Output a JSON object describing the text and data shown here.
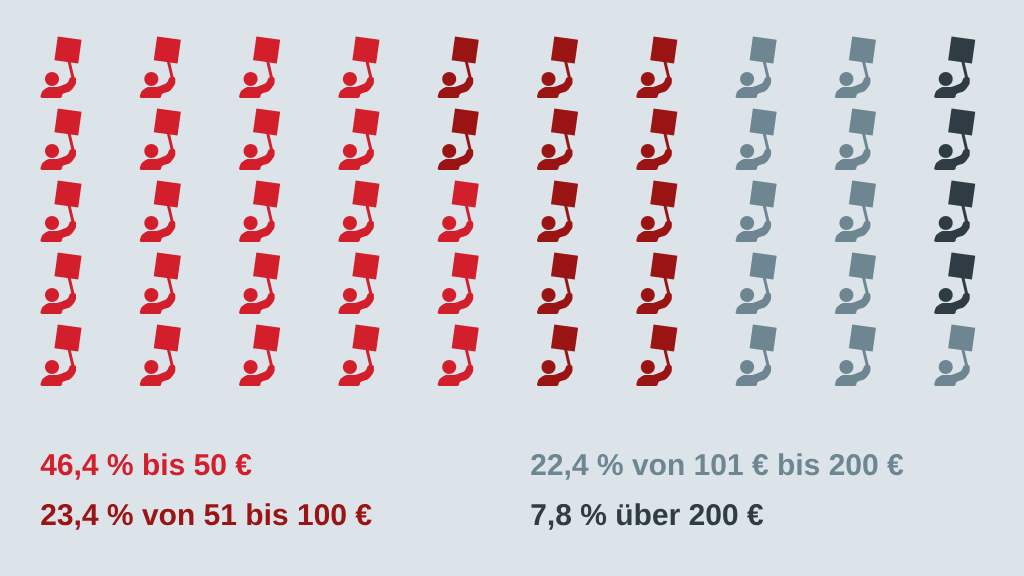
{
  "chart_data": {
    "type": "other",
    "categories": [
      "bis 50 €",
      "von 51 bis 100 €",
      "von 101 € bis 200 €",
      "über 200 €"
    ],
    "values": [
      46.4,
      23.4,
      22.4,
      7.8
    ],
    "value_labels": [
      "46,4 %",
      "23,4 %",
      "22,4 %",
      "7,8 %"
    ],
    "colors": [
      "#d21f2b",
      "#9b1414",
      "#6d8692",
      "#2f3c44"
    ]
  }
}
